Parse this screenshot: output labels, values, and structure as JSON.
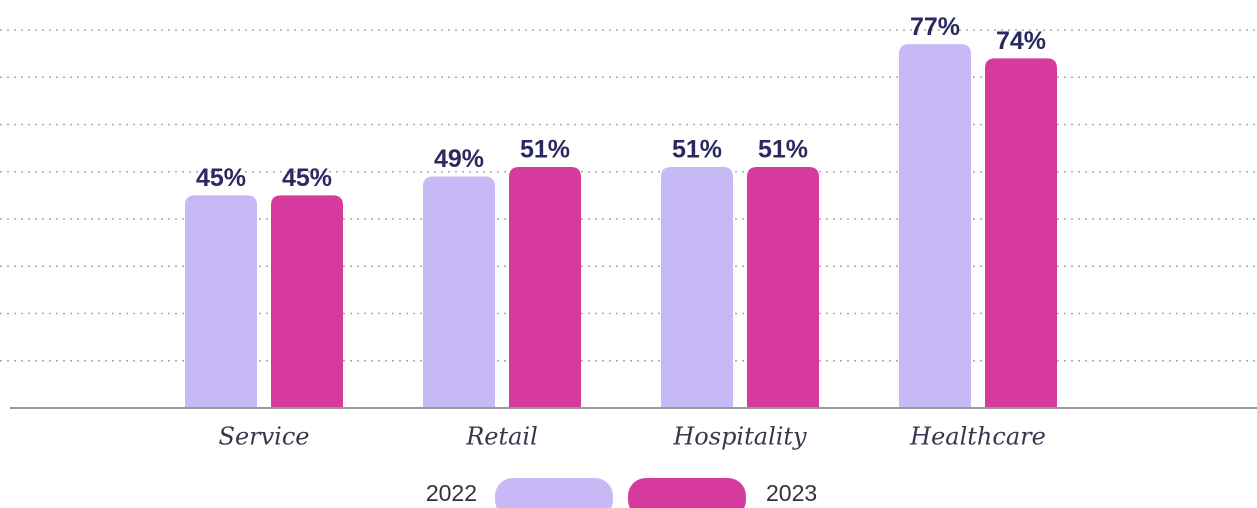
{
  "chart_data": {
    "type": "bar",
    "categories": [
      "Service",
      "Retail",
      "Hospitality",
      "Healthcare"
    ],
    "series": [
      {
        "name": "2022",
        "color": "#c6b9f6",
        "values": [
          45,
          49,
          51,
          77
        ],
        "value_labels": [
          "45%",
          "49%",
          "51%",
          "77%"
        ]
      },
      {
        "name": "2023",
        "color": "#d73a9d",
        "values": [
          45,
          51,
          51,
          74
        ],
        "value_labels": [
          "45%",
          "51%",
          "51%",
          "74%"
        ]
      }
    ],
    "ylim": [
      0,
      80
    ],
    "yticks": [
      10,
      20,
      30,
      40,
      50,
      60,
      70,
      80
    ],
    "grid": true
  }
}
